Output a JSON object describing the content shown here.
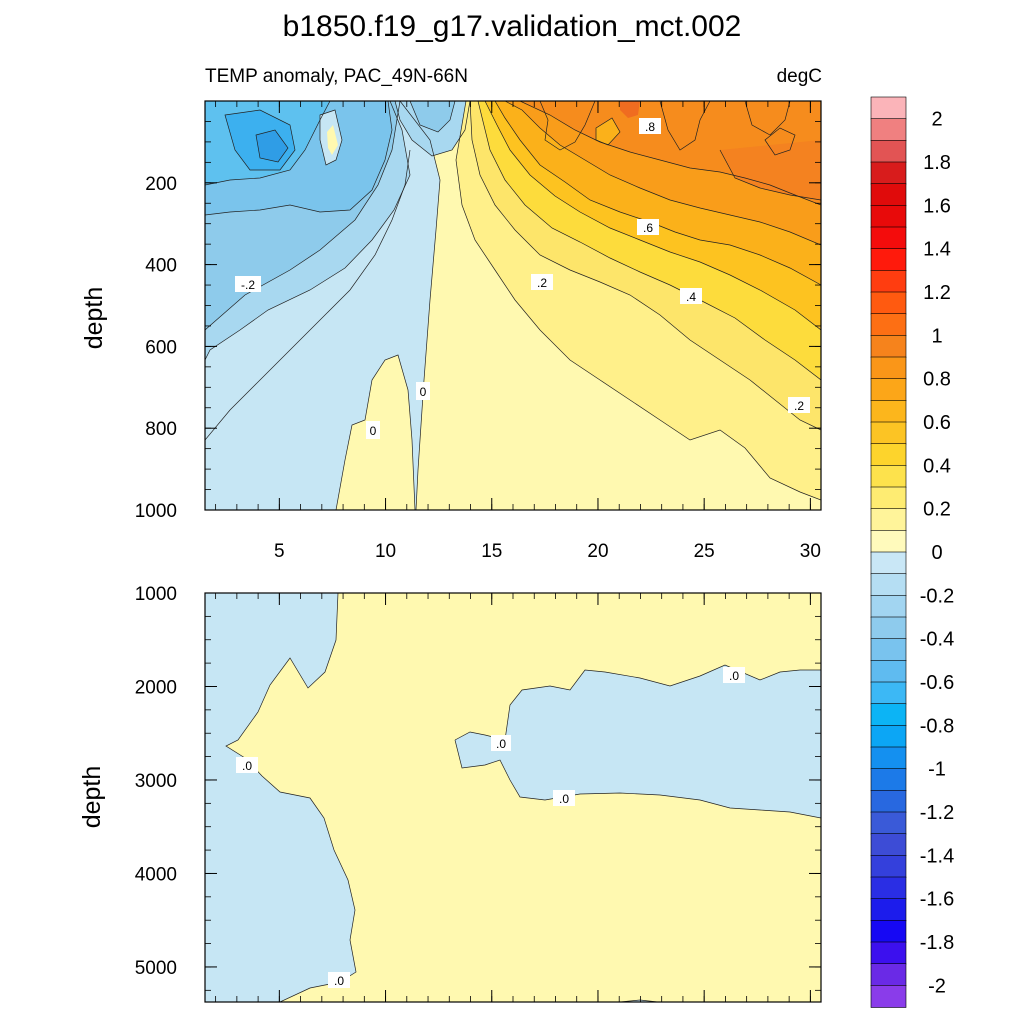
{
  "chart_data": {
    "type": "contour",
    "title": "b1850.f19_g17.validation_mct.002",
    "subtitle_left": "TEMP anomaly, PAC_49N-66N",
    "subtitle_right": "degC",
    "colors": {
      "neg_0_0.1": "#c6e6f4",
      "neg_0.1_0.2": "#a8d8f0",
      "neg_0.2_0.3": "#8ecbeb",
      "neg_0.4_0.5": "#5ec1ef",
      "zero_0.1": "#fff9b0",
      "pos_0.1_0.2": "#fff08a",
      "pos_0.2_0.3": "#fde56a",
      "pos_0.3_0.4": "#fddc3c",
      "pos_0.4_0.5": "#fdc320",
      "pos_0.5_0.6": "#fbb11a",
      "pos_0.6_0.7": "#f99d1a",
      "pos_0.7_0.8": "#f68c1d",
      "pos_0.8_0.9": "#f48220"
    },
    "top_panel": {
      "xlabel": "",
      "ylabel": "depth",
      "xlim": [
        1.5,
        30.5
      ],
      "ylim": [
        0,
        1000
      ],
      "x_ticks": [
        5,
        10,
        15,
        20,
        25,
        30
      ],
      "y_ticks": [
        200,
        400,
        600,
        800,
        1000
      ],
      "contour_labels": [
        ".8",
        ".6",
        ".4",
        ".2",
        "-.2",
        "0",
        "0",
        ".2"
      ]
    },
    "bottom_panel": {
      "xlabel": "",
      "ylabel": "depth",
      "xlim": [
        1.5,
        30.5
      ],
      "ylim": [
        1000,
        5375
      ],
      "y_ticks": [
        1000,
        2000,
        3000,
        4000,
        5000
      ],
      "contour_labels": [
        ".0",
        ".0",
        ".0",
        ".0",
        ".0"
      ]
    },
    "colorbar": {
      "labels": [
        "2",
        "1.8",
        "1.6",
        "1.4",
        "1.2",
        "1",
        "0.8",
        "0.6",
        "0.4",
        "0.2",
        "0",
        "-0.2",
        "-0.4",
        "-0.6",
        "-0.8",
        "-1",
        "-1.2",
        "-1.4",
        "-1.6",
        "-1.8",
        "-2"
      ],
      "colors": [
        "#fbb4b9",
        "#f08080",
        "#e25454",
        "#d81c1c",
        "#e00b0b",
        "#e80a0a",
        "#f40c0c",
        "#ff1a0c",
        "#ff3d10",
        "#ff5a10",
        "#fd6f14",
        "#f6831c",
        "#fa9618",
        "#fca618",
        "#fcb61c",
        "#fcc424",
        "#fdd42c",
        "#fde24c",
        "#feec72",
        "#fff49a",
        "#fffabc",
        "#c9e7f6",
        "#b5def3",
        "#a2d5f1",
        "#8ecbed",
        "#79c3ee",
        "#5fbbf0",
        "#3cb8f5",
        "#0cb4f5",
        "#0ca6f5",
        "#1490f0",
        "#1c7ae8",
        "#2868e0",
        "#3a5ad8",
        "#3d4cd6",
        "#3440dc",
        "#2a2ee4",
        "#1c1cec",
        "#1608f4",
        "#3c10ee",
        "#6a2ae6",
        "#8a3cea"
      ]
    }
  }
}
